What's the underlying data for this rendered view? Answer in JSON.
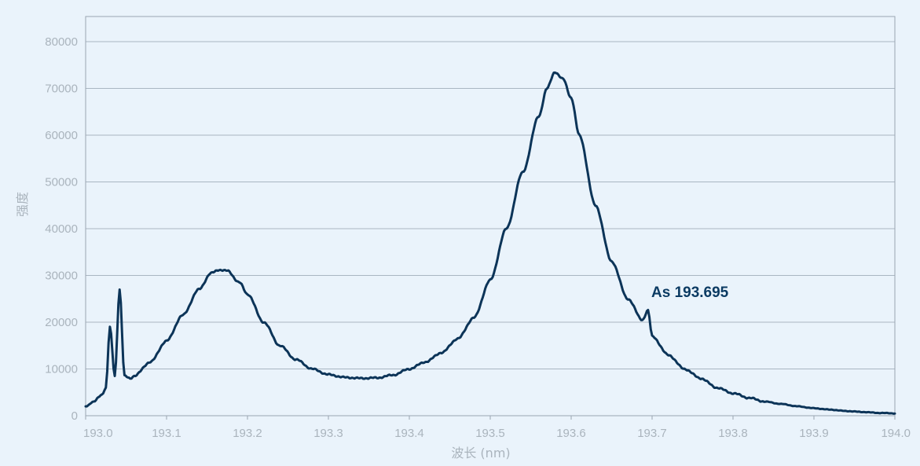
{
  "chart_data": {
    "type": "line",
    "xlabel": "波长 (nm)",
    "ylabel": "强度",
    "xlim": [
      193.0,
      194.0
    ],
    "ylim": [
      0,
      80000
    ],
    "grid": true,
    "colors": {
      "line": "#0c3458",
      "background": "#eaf3fb",
      "grid": "#a9b6c2"
    },
    "x_ticks": [
      "193.0",
      "193.1",
      "193.2",
      "193.3",
      "193.4",
      "193.5",
      "193.6",
      "193.7",
      "193.8",
      "193.9",
      "194.0"
    ],
    "y_ticks": [
      "0",
      "10000",
      "20000",
      "30000",
      "40000",
      "50000",
      "60000",
      "70000",
      "80000"
    ],
    "annotations": [
      {
        "text": "As 193.695",
        "x": 193.695,
        "y": 22500
      }
    ],
    "series": [
      {
        "points": [
          [
            193.0,
            2000
          ],
          [
            193.01,
            3000
          ],
          [
            193.02,
            4500
          ],
          [
            193.025,
            6000
          ],
          [
            193.03,
            19000
          ],
          [
            193.036,
            8500
          ],
          [
            193.042,
            27000
          ],
          [
            193.048,
            8500
          ],
          [
            193.055,
            8000
          ],
          [
            193.06,
            8500
          ],
          [
            193.08,
            11500
          ],
          [
            193.1,
            16000
          ],
          [
            193.12,
            21500
          ],
          [
            193.14,
            27000
          ],
          [
            193.155,
            30500
          ],
          [
            193.165,
            31200
          ],
          [
            193.175,
            31000
          ],
          [
            193.19,
            28500
          ],
          [
            193.2,
            26000
          ],
          [
            193.22,
            20000
          ],
          [
            193.24,
            15000
          ],
          [
            193.26,
            12000
          ],
          [
            193.28,
            10000
          ],
          [
            193.3,
            8800
          ],
          [
            193.32,
            8200
          ],
          [
            193.34,
            8000
          ],
          [
            193.36,
            8100
          ],
          [
            193.38,
            8700
          ],
          [
            193.4,
            10000
          ],
          [
            193.42,
            11500
          ],
          [
            193.44,
            13500
          ],
          [
            193.46,
            16500
          ],
          [
            193.48,
            21000
          ],
          [
            193.5,
            29000
          ],
          [
            193.52,
            40000
          ],
          [
            193.54,
            52000
          ],
          [
            193.56,
            64000
          ],
          [
            193.57,
            70000
          ],
          [
            193.58,
            73500
          ],
          [
            193.59,
            72000
          ],
          [
            193.6,
            68000
          ],
          [
            193.61,
            60000
          ],
          [
            193.63,
            45000
          ],
          [
            193.65,
            33000
          ],
          [
            193.67,
            25000
          ],
          [
            193.688,
            20500
          ],
          [
            193.695,
            22500
          ],
          [
            193.7,
            17000
          ],
          [
            193.72,
            13000
          ],
          [
            193.74,
            10000
          ],
          [
            193.76,
            8000
          ],
          [
            193.78,
            6000
          ],
          [
            193.8,
            4800
          ],
          [
            193.82,
            3800
          ],
          [
            193.84,
            3000
          ],
          [
            193.86,
            2500
          ],
          [
            193.88,
            2000
          ],
          [
            193.9,
            1600
          ],
          [
            193.92,
            1300
          ],
          [
            193.94,
            1000
          ],
          [
            193.96,
            800
          ],
          [
            193.98,
            600
          ],
          [
            194.0,
            500
          ]
        ]
      }
    ]
  }
}
